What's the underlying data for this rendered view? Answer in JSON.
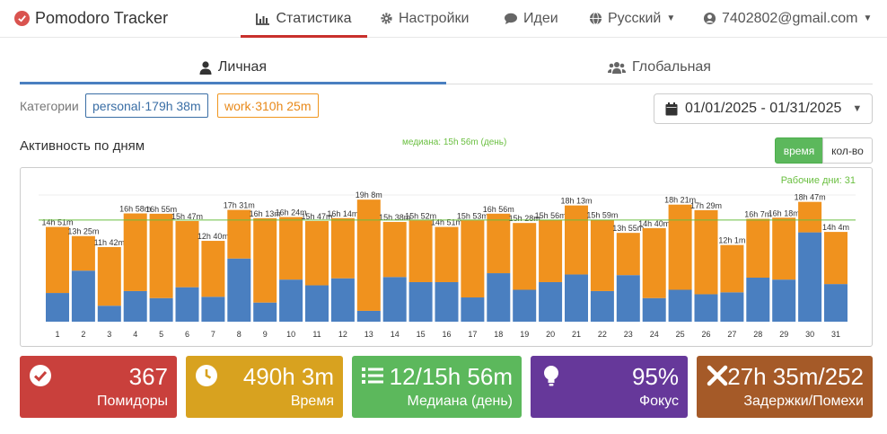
{
  "app": {
    "title": "Pomodoro Tracker"
  },
  "nav": {
    "statistics": "Статистика",
    "settings": "Настройки",
    "ideas": "Идеи",
    "language": "Русский",
    "account": "7402802@gmail.com"
  },
  "tabs": {
    "personal": "Личная",
    "global": "Глобальная"
  },
  "categories": {
    "label": "Категории",
    "personal": "personal·179h 38m",
    "work": "work·310h 25m"
  },
  "date_range": "01/01/2025 - 01/31/2025",
  "chart_header": {
    "title": "Активность по дням",
    "median": "медиана: 15h 56m (день)",
    "toggle_time": "время",
    "toggle_count": "кол-во"
  },
  "colors": {
    "personal": "#4a7fc0",
    "work": "#f0921e",
    "median_line": "#6abf40"
  },
  "chart_data": {
    "type": "bar",
    "stacked": true,
    "title": "Активность по дням",
    "annotation": "Рабочие дни: 31",
    "median_hours": 15.93,
    "ylim": [
      0,
      20
    ],
    "categories": [
      "1",
      "2",
      "3",
      "4",
      "5",
      "6",
      "7",
      "8",
      "9",
      "10",
      "11",
      "12",
      "13",
      "14",
      "15",
      "16",
      "17",
      "18",
      "19",
      "20",
      "21",
      "22",
      "23",
      "24",
      "25",
      "26",
      "27",
      "28",
      "29",
      "30",
      "31"
    ],
    "labels": [
      "14h 51m",
      "13h 25m",
      "11h 42m",
      "16h 58m",
      "16h 55m",
      "15h 47m",
      "12h 40m",
      "17h 31m",
      "16h 13m",
      "16h 24m",
      "15h 47m",
      "16h 14m",
      "19h 8m",
      "15h 38m",
      "15h 52m",
      "14h 51m",
      "15h 53m",
      "16h 56m",
      "15h 28m",
      "15h 56m",
      "18h 13m",
      "15h 59m",
      "13h 55m",
      "14h 40m",
      "18h 21m",
      "17h 29m",
      "12h 1m",
      "16h 7m",
      "16h 18m",
      "18h 47m",
      "14h 4m"
    ],
    "series": [
      {
        "name": "personal",
        "values": [
          4.5,
          8.0,
          2.5,
          4.8,
          3.7,
          5.4,
          3.9,
          9.9,
          3.0,
          6.6,
          5.7,
          6.8,
          1.7,
          7.0,
          6.2,
          6.2,
          3.8,
          7.6,
          5.0,
          6.2,
          7.4,
          4.8,
          7.3,
          3.7,
          5.0,
          4.3,
          4.6,
          6.9,
          6.6,
          14.0,
          5.9
        ]
      },
      {
        "name": "work",
        "values": [
          10.35,
          5.42,
          9.2,
          12.17,
          13.22,
          10.38,
          8.77,
          7.62,
          13.22,
          9.8,
          10.08,
          9.43,
          17.43,
          8.63,
          9.67,
          8.65,
          12.08,
          9.33,
          10.47,
          9.73,
          10.82,
          11.18,
          6.62,
          10.97,
          13.35,
          13.18,
          7.42,
          9.22,
          9.7,
          4.78,
          8.17
        ]
      }
    ]
  },
  "tiles": [
    {
      "value": "367",
      "label": "Помидоры",
      "color": "#c9403c",
      "icon": "check-circle-icon"
    },
    {
      "value": "490h 3m",
      "label": "Время",
      "color": "#d8a21f",
      "icon": "clock-icon"
    },
    {
      "value": "12/15h 56m",
      "label": "Медиана (день)",
      "color": "#5cb85c",
      "icon": "list-icon"
    },
    {
      "value": "95%",
      "label": "Фокус",
      "color": "#66389a",
      "icon": "lightbulb-icon"
    },
    {
      "value": "27h 35m/252",
      "label": "Задержки/Помехи",
      "color": "#a55a28",
      "icon": "x-icon"
    }
  ]
}
